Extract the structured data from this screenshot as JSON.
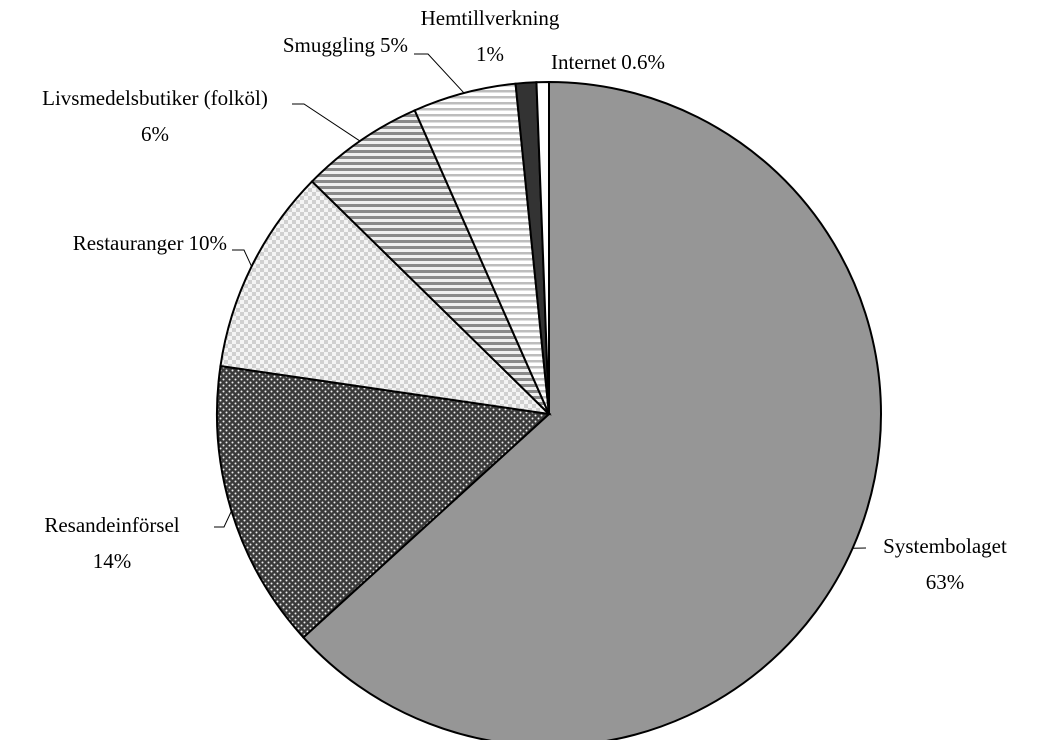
{
  "chart_data": {
    "type": "pie",
    "categories": [
      "Systembolaget",
      "Resandeinförsel",
      "Restauranger",
      "Livsmedelsbutiker (folköl)",
      "Smuggling",
      "Hemtillverkning",
      "Internet"
    ],
    "values": [
      63,
      14,
      10,
      6,
      5,
      1,
      0.6
    ],
    "value_labels": [
      "63%",
      "14%",
      "10%",
      "6%",
      "5%",
      "1%",
      "0.6%"
    ],
    "colors": [
      "#969696",
      "#3a3a3a",
      "#d0d0d0",
      "#8a8a8a",
      "#bdbdbd",
      "#333333",
      "#ffffff"
    ]
  }
}
